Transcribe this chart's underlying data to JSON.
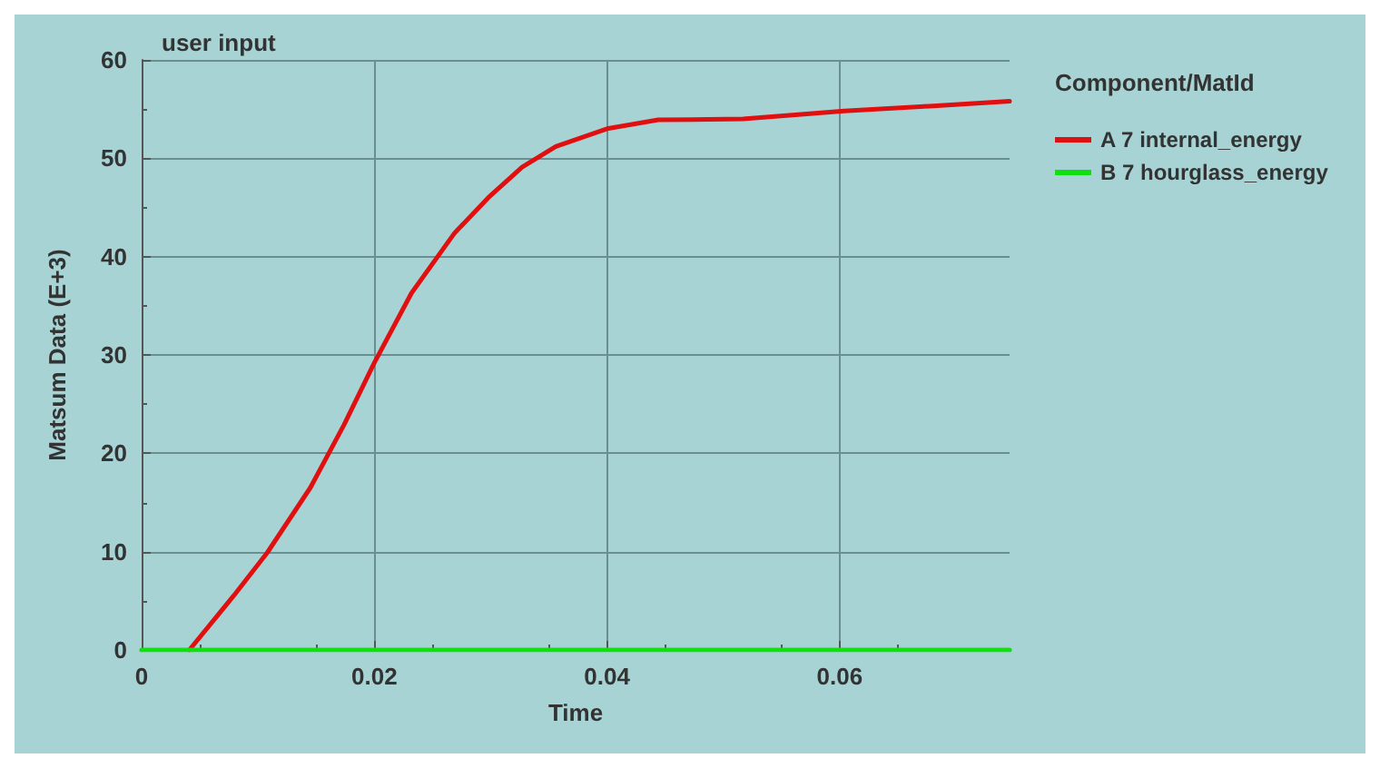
{
  "chart_data": {
    "type": "line",
    "title": "user input",
    "xlabel": "Time",
    "ylabel": "Matsum Data (E+3)",
    "legend_title": "Component/MatId",
    "legend": "right",
    "grid": true,
    "marker": "none",
    "line_style": "solid",
    "xlim": [
      0,
      0.0746
    ],
    "xticks": [
      0,
      0.02,
      0.04,
      0.06
    ],
    "ylim": [
      0,
      60
    ],
    "yticks": [
      0,
      10,
      20,
      30,
      40,
      50,
      60
    ],
    "series": [
      {
        "name": "A 7 internal_energy",
        "color": "#e01010",
        "x": [
          0.0041,
          0.0079,
          0.0108,
          0.0145,
          0.0174,
          0.02,
          0.0232,
          0.0269,
          0.0298,
          0.0327,
          0.0356,
          0.04,
          0.0444,
          0.0517,
          0.0604,
          0.0677,
          0.0746
        ],
        "values": [
          0,
          5.5,
          9.9,
          16.5,
          22.9,
          29.2,
          36.3,
          42.4,
          46,
          49.1,
          51.2,
          53,
          53.9,
          54,
          54.8,
          55.3,
          55.8
        ]
      },
      {
        "name": "B 7 hourglass_energy",
        "color": "#10e010",
        "x": [
          0,
          0.0746
        ],
        "values": [
          0,
          0
        ]
      }
    ]
  }
}
